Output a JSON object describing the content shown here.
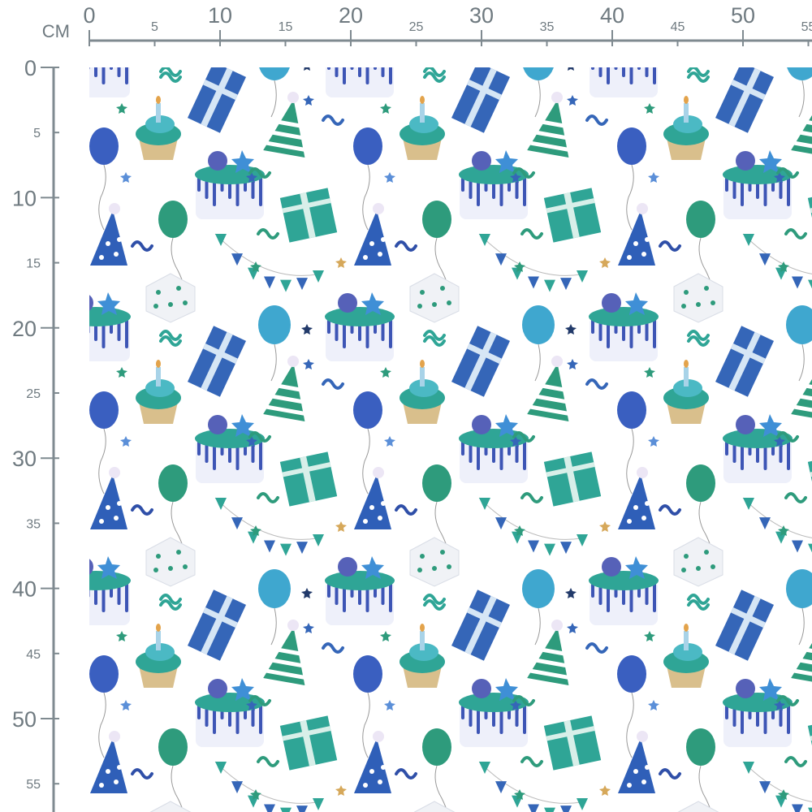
{
  "ruler": {
    "unit_label": "CM",
    "color": "#7f8a90",
    "top_labels": [
      "0",
      "5",
      "10",
      "15",
      "20",
      "25",
      "30",
      "35",
      "40",
      "45",
      "50",
      "55"
    ],
    "left_labels": [
      "0",
      "5",
      "10",
      "15",
      "20",
      "25",
      "30",
      "35",
      "40",
      "45",
      "50",
      "55"
    ]
  },
  "fabric": {
    "background": "#ffffff",
    "motifs": [
      "cupcake",
      "gift-box-blue",
      "party-hat-striped",
      "balloon-blue",
      "drip-cake",
      "gift-box-green",
      "party-hat-dotted",
      "balloon-green",
      "bunting",
      "gift-box-white",
      "balloon-light-blue",
      "star",
      "confetti"
    ],
    "colors": {
      "teal": "#2fa596",
      "blue": "#3566b8",
      "light_blue": "#3fa7cf",
      "green": "#2e9b7c",
      "cream": "#d9bf8c"
    }
  }
}
